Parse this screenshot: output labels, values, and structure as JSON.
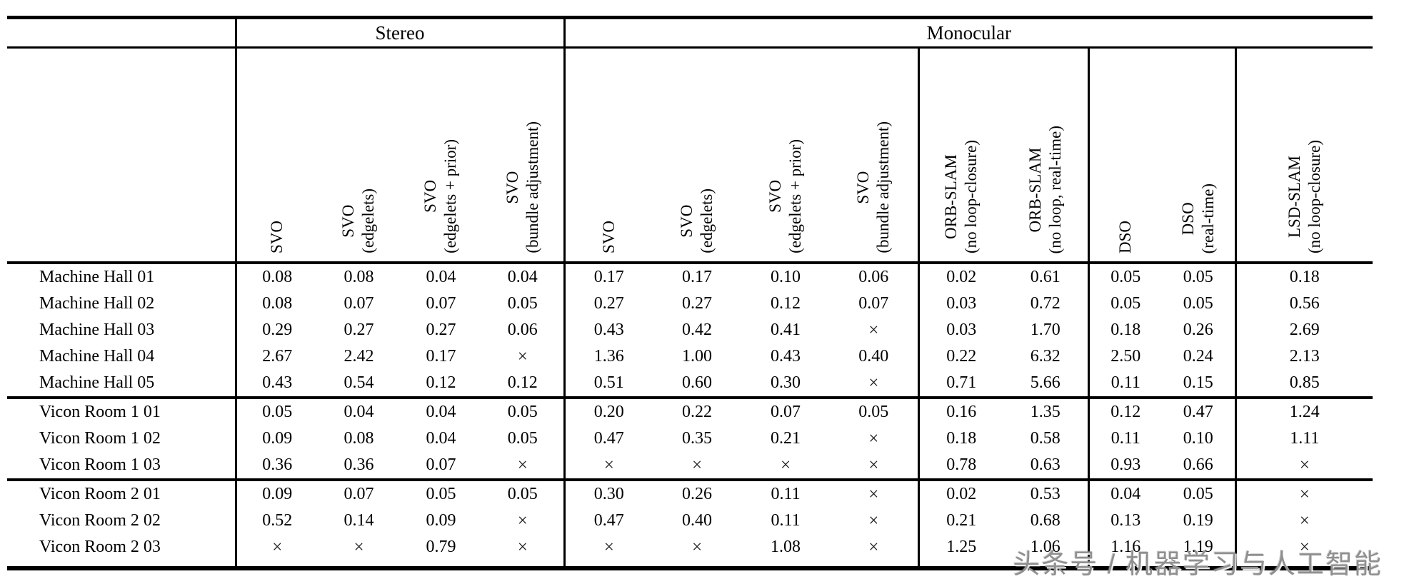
{
  "table": {
    "groups": [
      {
        "label": "Stereo",
        "span": 4
      },
      {
        "label": "Monocular",
        "span": 9
      }
    ],
    "columns": [
      {
        "name": "SVO",
        "sub": "",
        "divider": true
      },
      {
        "name": "SVO",
        "sub": "(edgelets)",
        "divider": false
      },
      {
        "name": "SVO",
        "sub": "(edgelets + prior)",
        "divider": false
      },
      {
        "name": "SVO",
        "sub": "(bundle adjustment)",
        "divider": false
      },
      {
        "name": "SVO",
        "sub": "",
        "divider": true
      },
      {
        "name": "SVO",
        "sub": "(edgelets)",
        "divider": false
      },
      {
        "name": "SVO",
        "sub": "(edgelets + prior)",
        "divider": false
      },
      {
        "name": "SVO",
        "sub": "(bundle adjustment)",
        "divider": false
      },
      {
        "name": "ORB-SLAM",
        "sub": "(no loop-closure)",
        "divider": true
      },
      {
        "name": "ORB-SLAM",
        "sub": "(no loop, real-time)",
        "divider": false
      },
      {
        "name": "DSO",
        "sub": "",
        "divider": true
      },
      {
        "name": "DSO",
        "sub": "(real-time)",
        "divider": false
      },
      {
        "name": "LSD-SLAM",
        "sub": "(no loop-closure)",
        "divider": true
      }
    ],
    "failure_symbol": "×",
    "row_blocks": [
      {
        "rows": [
          {
            "label": "Machine Hall 01",
            "values": [
              "0.08",
              "0.08",
              "0.04",
              "0.04",
              "0.17",
              "0.17",
              "0.10",
              "0.06",
              "0.02",
              "0.61",
              "0.05",
              "0.05",
              "0.18"
            ],
            "bold": [
              3,
              8
            ]
          },
          {
            "label": "Machine Hall 02",
            "values": [
              "0.08",
              "0.07",
              "0.07",
              "0.05",
              "0.27",
              "0.27",
              "0.12",
              "0.07",
              "0.03",
              "0.72",
              "0.05",
              "0.05",
              "0.56"
            ],
            "bold": [
              3,
              8
            ]
          },
          {
            "label": "Machine Hall 03",
            "values": [
              "0.29",
              "0.27",
              "0.27",
              "0.06",
              "0.43",
              "0.42",
              "0.41",
              "×",
              "0.03",
              "1.70",
              "0.18",
              "0.26",
              "2.69"
            ],
            "bold": [
              3,
              8
            ]
          },
          {
            "label": "Machine Hall 04",
            "values": [
              "2.67",
              "2.42",
              "0.17",
              "×",
              "1.36",
              "1.00",
              "0.43",
              "0.40",
              "0.22",
              "6.32",
              "2.50",
              "0.24",
              "2.13"
            ],
            "bold": [
              2,
              11
            ]
          },
          {
            "label": "Machine Hall 05",
            "values": [
              "0.43",
              "0.54",
              "0.12",
              "0.12",
              "0.51",
              "0.60",
              "0.30",
              "×",
              "0.71",
              "5.66",
              "0.11",
              "0.15",
              "0.85"
            ],
            "bold": [
              3,
              10
            ]
          }
        ]
      },
      {
        "rows": [
          {
            "label": "Vicon Room 1 01",
            "values": [
              "0.05",
              "0.04",
              "0.04",
              "0.05",
              "0.20",
              "0.22",
              "0.07",
              "0.05",
              "0.16",
              "1.35",
              "0.12",
              "0.47",
              "1.24"
            ],
            "bold": [
              2,
              7
            ]
          },
          {
            "label": "Vicon Room 1 02",
            "values": [
              "0.09",
              "0.08",
              "0.04",
              "0.05",
              "0.47",
              "0.35",
              "0.21",
              "×",
              "0.18",
              "0.58",
              "0.11",
              "0.10",
              "1.11"
            ],
            "bold": [
              2,
              11
            ]
          },
          {
            "label": "Vicon Room 1 03",
            "values": [
              "0.36",
              "0.36",
              "0.07",
              "×",
              "×",
              "×",
              "×",
              "×",
              "0.78",
              "0.63",
              "0.93",
              "0.66",
              "×"
            ],
            "bold": [
              2,
              11
            ]
          }
        ]
      },
      {
        "rows": [
          {
            "label": "Vicon Room 2 01",
            "values": [
              "0.09",
              "0.07",
              "0.05",
              "0.05",
              "0.30",
              "0.26",
              "0.11",
              "×",
              "0.02",
              "0.53",
              "0.04",
              "0.05",
              "×"
            ],
            "bold": [
              2,
              8
            ]
          },
          {
            "label": "Vicon Room 2 02",
            "values": [
              "0.52",
              "0.14",
              "0.09",
              "×",
              "0.47",
              "0.40",
              "0.11",
              "×",
              "0.21",
              "0.68",
              "0.13",
              "0.19",
              "×"
            ],
            "bold": [
              2,
              6
            ]
          },
          {
            "label": "Vicon Room 2 03",
            "values": [
              "×",
              "×",
              "0.79",
              "×",
              "×",
              "×",
              "1.08",
              "×",
              "1.25",
              "1.06",
              "1.16",
              "1.19",
              "×"
            ],
            "bold": [
              2,
              9
            ]
          }
        ]
      }
    ]
  },
  "watermark": "头条号 / 机器学习与人工智能"
}
